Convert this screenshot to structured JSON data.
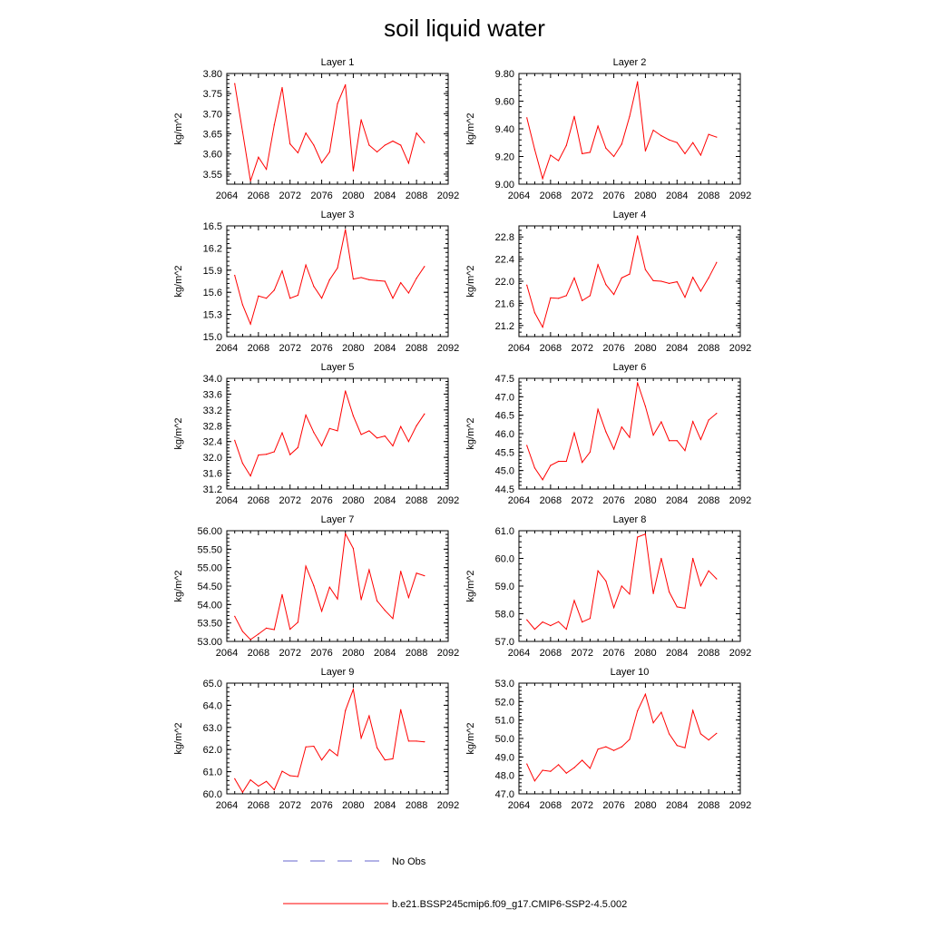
{
  "title": "soil liquid water",
  "legend": {
    "obs_label": "No Obs",
    "obs_color": "#6666cc",
    "model_label": "b.e21.BSSP245cmip6.f09_g17.CMIP6-SSP2-4.5.002",
    "model_color": "#ff0000"
  },
  "chart_data": [
    {
      "type": "line",
      "title": "Layer 1",
      "xlabel": "",
      "ylabel": "kg/m^2",
      "xlim": [
        2064,
        2092
      ],
      "ylim": [
        3.525,
        3.8
      ],
      "xticks": [
        "2064",
        "2068",
        "2072",
        "2076",
        "2080",
        "2084",
        "2088",
        "2092"
      ],
      "yticks": [
        "3.55",
        "3.60",
        "3.65",
        "3.70",
        "3.75",
        "3.80"
      ],
      "x": [
        2065,
        2066,
        2067,
        2068,
        2069,
        2070,
        2071,
        2072,
        2073,
        2074,
        2075,
        2076,
        2077,
        2078,
        2079,
        2080,
        2081,
        2082,
        2083,
        2084,
        2085,
        2086,
        2087,
        2088,
        2089
      ],
      "series": [
        {
          "name": "b.e21.BSSP245cmip6.f09_g17.CMIP6-SSP2-4.5.002",
          "values": [
            3.775,
            3.655,
            3.533,
            3.592,
            3.562,
            3.672,
            3.765,
            3.625,
            3.603,
            3.652,
            3.622,
            3.578,
            3.605,
            3.725,
            3.772,
            3.558,
            3.685,
            3.622,
            3.605,
            3.622,
            3.632,
            3.622,
            3.577,
            3.652,
            3.628
          ]
        }
      ]
    },
    {
      "type": "line",
      "title": "Layer 2",
      "xlabel": "",
      "ylabel": "kg/m^2",
      "xlim": [
        2064,
        2092
      ],
      "ylim": [
        9.0,
        9.8
      ],
      "xticks": [
        "2064",
        "2068",
        "2072",
        "2076",
        "2080",
        "2084",
        "2088",
        "2092"
      ],
      "yticks": [
        "9.00",
        "9.20",
        "9.40",
        "9.60",
        "9.80"
      ],
      "x": [
        2065,
        2066,
        2067,
        2068,
        2069,
        2070,
        2071,
        2072,
        2073,
        2074,
        2075,
        2076,
        2077,
        2078,
        2079,
        2080,
        2081,
        2082,
        2083,
        2084,
        2085,
        2086,
        2087,
        2088,
        2089
      ],
      "series": [
        {
          "name": "b.e21.BSSP245cmip6.f09_g17.CMIP6-SSP2-4.5.002",
          "values": [
            9.48,
            9.25,
            9.04,
            9.21,
            9.17,
            9.28,
            9.49,
            9.22,
            9.23,
            9.42,
            9.26,
            9.2,
            9.29,
            9.49,
            9.74,
            9.24,
            9.39,
            9.35,
            9.32,
            9.3,
            9.22,
            9.3,
            9.21,
            9.36,
            9.34
          ]
        }
      ]
    },
    {
      "type": "line",
      "title": "Layer 3",
      "xlabel": "",
      "ylabel": "kg/m^2",
      "xlim": [
        2064,
        2092
      ],
      "ylim": [
        15.0,
        16.5
      ],
      "xticks": [
        "2064",
        "2068",
        "2072",
        "2076",
        "2080",
        "2084",
        "2088",
        "2092"
      ],
      "yticks": [
        "15.0",
        "15.3",
        "15.6",
        "15.9",
        "16.2",
        "16.5"
      ],
      "x": [
        2065,
        2066,
        2067,
        2068,
        2069,
        2070,
        2071,
        2072,
        2073,
        2074,
        2075,
        2076,
        2077,
        2078,
        2079,
        2080,
        2081,
        2082,
        2083,
        2084,
        2085,
        2086,
        2087,
        2088,
        2089
      ],
      "series": [
        {
          "name": "b.e21.BSSP245cmip6.f09_g17.CMIP6-SSP2-4.5.002",
          "values": [
            15.83,
            15.43,
            15.17,
            15.55,
            15.52,
            15.63,
            15.89,
            15.52,
            15.56,
            15.97,
            15.68,
            15.52,
            15.77,
            15.93,
            16.45,
            15.78,
            15.8,
            15.77,
            15.76,
            15.75,
            15.52,
            15.73,
            15.59,
            15.79,
            15.95
          ]
        }
      ]
    },
    {
      "type": "line",
      "title": "Layer 4",
      "xlabel": "",
      "ylabel": "kg/m^2",
      "xlim": [
        2064,
        2092
      ],
      "ylim": [
        21.0,
        23.0
      ],
      "xticks": [
        "2064",
        "2068",
        "2072",
        "2076",
        "2080",
        "2084",
        "2088",
        "2092"
      ],
      "yticks": [
        "21.2",
        "21.6",
        "22.0",
        "22.4",
        "22.8"
      ],
      "x": [
        2065,
        2066,
        2067,
        2068,
        2069,
        2070,
        2071,
        2072,
        2073,
        2074,
        2075,
        2076,
        2077,
        2078,
        2079,
        2080,
        2081,
        2082,
        2083,
        2084,
        2085,
        2086,
        2087,
        2088,
        2089
      ],
      "series": [
        {
          "name": "b.e21.BSSP245cmip6.f09_g17.CMIP6-SSP2-4.5.002",
          "values": [
            21.93,
            21.43,
            21.17,
            21.7,
            21.69,
            21.74,
            22.06,
            21.65,
            21.74,
            22.3,
            21.94,
            21.76,
            22.06,
            22.13,
            22.82,
            22.21,
            22.01,
            22.0,
            21.96,
            21.99,
            21.71,
            22.07,
            21.82,
            22.06,
            22.34
          ]
        }
      ]
    },
    {
      "type": "line",
      "title": "Layer 5",
      "xlabel": "",
      "ylabel": "kg/m^2",
      "xlim": [
        2064,
        2092
      ],
      "ylim": [
        31.2,
        34.0
      ],
      "xticks": [
        "2064",
        "2068",
        "2072",
        "2076",
        "2080",
        "2084",
        "2088",
        "2092"
      ],
      "yticks": [
        "31.2",
        "31.6",
        "32.0",
        "32.4",
        "32.8",
        "33.2",
        "33.6",
        "34.0"
      ],
      "x": [
        2065,
        2066,
        2067,
        2068,
        2069,
        2070,
        2071,
        2072,
        2073,
        2074,
        2075,
        2076,
        2077,
        2078,
        2079,
        2080,
        2081,
        2082,
        2083,
        2084,
        2085,
        2086,
        2087,
        2088,
        2089
      ],
      "series": [
        {
          "name": "b.e21.BSSP245cmip6.f09_g17.CMIP6-SSP2-4.5.002",
          "values": [
            32.43,
            31.85,
            31.53,
            32.06,
            32.08,
            32.14,
            32.62,
            32.07,
            32.25,
            33.07,
            32.63,
            32.29,
            32.73,
            32.67,
            33.68,
            33.05,
            32.58,
            32.67,
            32.49,
            32.54,
            32.29,
            32.78,
            32.4,
            32.8,
            33.1
          ]
        }
      ]
    },
    {
      "type": "line",
      "title": "Layer 6",
      "xlabel": "",
      "ylabel": "kg/m^2",
      "xlim": [
        2064,
        2092
      ],
      "ylim": [
        44.5,
        47.5
      ],
      "xticks": [
        "2064",
        "2068",
        "2072",
        "2076",
        "2080",
        "2084",
        "2088",
        "2092"
      ],
      "yticks": [
        "44.5",
        "45.0",
        "45.5",
        "46.0",
        "46.5",
        "47.0",
        "47.5"
      ],
      "x": [
        2065,
        2066,
        2067,
        2068,
        2069,
        2070,
        2071,
        2072,
        2073,
        2074,
        2075,
        2076,
        2077,
        2078,
        2079,
        2080,
        2081,
        2082,
        2083,
        2084,
        2085,
        2086,
        2087,
        2088,
        2089
      ],
      "series": [
        {
          "name": "b.e21.BSSP245cmip6.f09_g17.CMIP6-SSP2-4.5.002",
          "values": [
            45.68,
            45.07,
            44.75,
            45.14,
            45.25,
            45.25,
            46.02,
            45.22,
            45.5,
            46.66,
            46.05,
            45.58,
            46.18,
            45.9,
            47.38,
            46.74,
            45.96,
            46.32,
            45.81,
            45.81,
            45.54,
            46.33,
            45.84,
            46.37,
            46.55
          ]
        }
      ]
    },
    {
      "type": "line",
      "title": "Layer 7",
      "xlabel": "",
      "ylabel": "kg/m^2",
      "xlim": [
        2064,
        2092
      ],
      "ylim": [
        53.0,
        56.0
      ],
      "xticks": [
        "2064",
        "2068",
        "2072",
        "2076",
        "2080",
        "2084",
        "2088",
        "2092"
      ],
      "yticks": [
        "53.00",
        "53.50",
        "54.00",
        "54.50",
        "55.00",
        "55.50",
        "56.00"
      ],
      "x": [
        2065,
        2066,
        2067,
        2068,
        2069,
        2070,
        2071,
        2072,
        2073,
        2074,
        2075,
        2076,
        2077,
        2078,
        2079,
        2080,
        2081,
        2082,
        2083,
        2084,
        2085,
        2086,
        2087,
        2088,
        2089
      ],
      "series": [
        {
          "name": "b.e21.BSSP245cmip6.f09_g17.CMIP6-SSP2-4.5.002",
          "values": [
            53.68,
            53.27,
            53.05,
            53.2,
            53.36,
            53.32,
            54.27,
            53.33,
            53.52,
            55.04,
            54.51,
            53.82,
            54.47,
            54.15,
            55.92,
            55.52,
            54.13,
            54.94,
            54.1,
            53.84,
            53.62,
            54.9,
            54.19,
            54.85,
            54.78
          ]
        }
      ]
    },
    {
      "type": "line",
      "title": "Layer 8",
      "xlabel": "",
      "ylabel": "kg/m^2",
      "xlim": [
        2064,
        2092
      ],
      "ylim": [
        57.0,
        61.0
      ],
      "xticks": [
        "2064",
        "2068",
        "2072",
        "2076",
        "2080",
        "2084",
        "2088",
        "2092"
      ],
      "yticks": [
        "57.0",
        "58.0",
        "59.0",
        "60.0",
        "61.0"
      ],
      "x": [
        2065,
        2066,
        2067,
        2068,
        2069,
        2070,
        2071,
        2072,
        2073,
        2074,
        2075,
        2076,
        2077,
        2078,
        2079,
        2080,
        2081,
        2082,
        2083,
        2084,
        2085,
        2086,
        2087,
        2088,
        2089
      ],
      "series": [
        {
          "name": "b.e21.BSSP245cmip6.f09_g17.CMIP6-SSP2-4.5.002",
          "values": [
            57.78,
            57.44,
            57.7,
            57.57,
            57.71,
            57.44,
            58.48,
            57.7,
            57.83,
            59.55,
            59.18,
            58.22,
            59.0,
            58.71,
            60.77,
            60.88,
            58.73,
            60.0,
            58.79,
            58.25,
            58.2,
            60.0,
            59.01,
            59.55,
            59.26
          ]
        }
      ]
    },
    {
      "type": "line",
      "title": "Layer 9",
      "xlabel": "",
      "ylabel": "kg/m^2",
      "xlim": [
        2064,
        2092
      ],
      "ylim": [
        60.0,
        65.0
      ],
      "xticks": [
        "2064",
        "2068",
        "2072",
        "2076",
        "2080",
        "2084",
        "2088",
        "2092"
      ],
      "yticks": [
        "60.0",
        "61.0",
        "62.0",
        "63.0",
        "64.0",
        "65.0"
      ],
      "x": [
        2065,
        2066,
        2067,
        2068,
        2069,
        2070,
        2071,
        2072,
        2073,
        2074,
        2075,
        2076,
        2077,
        2078,
        2079,
        2080,
        2081,
        2082,
        2083,
        2084,
        2085,
        2086,
        2087,
        2088,
        2089
      ],
      "series": [
        {
          "name": "b.e21.BSSP245cmip6.f09_g17.CMIP6-SSP2-4.5.002",
          "values": [
            60.68,
            60.07,
            60.63,
            60.35,
            60.56,
            60.18,
            61.02,
            60.82,
            60.78,
            62.12,
            62.15,
            61.53,
            62.0,
            61.72,
            63.76,
            64.72,
            62.52,
            63.52,
            62.08,
            61.53,
            61.58,
            63.8,
            62.38,
            62.38,
            62.35
          ]
        }
      ]
    },
    {
      "type": "line",
      "title": "Layer 10",
      "xlabel": "",
      "ylabel": "kg/m^2",
      "xlim": [
        2064,
        2092
      ],
      "ylim": [
        47.0,
        53.0
      ],
      "xticks": [
        "2064",
        "2068",
        "2072",
        "2076",
        "2080",
        "2084",
        "2088",
        "2092"
      ],
      "yticks": [
        "47.0",
        "48.0",
        "49.0",
        "50.0",
        "51.0",
        "52.0",
        "53.0"
      ],
      "x": [
        2065,
        2066,
        2067,
        2068,
        2069,
        2070,
        2071,
        2072,
        2073,
        2074,
        2075,
        2076,
        2077,
        2078,
        2079,
        2080,
        2081,
        2082,
        2083,
        2084,
        2085,
        2086,
        2087,
        2088,
        2089
      ],
      "series": [
        {
          "name": "b.e21.BSSP245cmip6.f09_g17.CMIP6-SSP2-4.5.002",
          "values": [
            48.62,
            47.7,
            48.28,
            48.22,
            48.58,
            48.12,
            48.42,
            48.82,
            48.38,
            49.42,
            49.55,
            49.35,
            49.55,
            49.95,
            51.5,
            52.4,
            50.85,
            51.42,
            50.25,
            49.62,
            49.5,
            51.52,
            50.25,
            49.92,
            50.28
          ]
        }
      ]
    }
  ]
}
